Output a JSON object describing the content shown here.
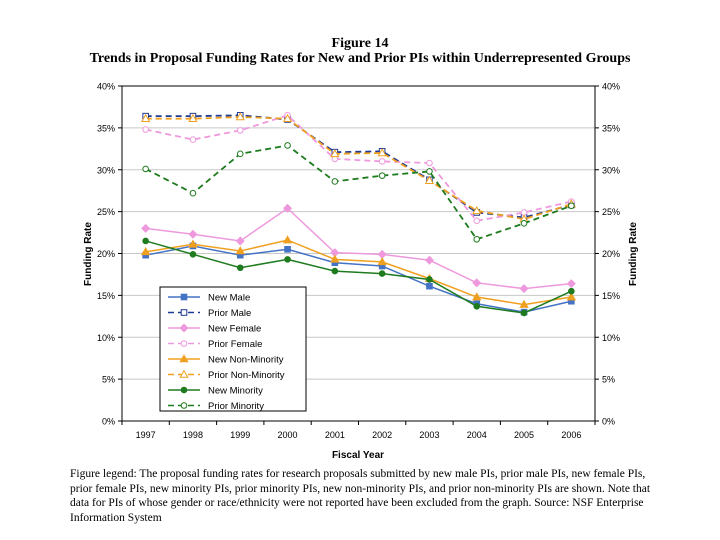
{
  "figure": {
    "label": "Figure 14",
    "title": "Trends in Proposal Funding Rates for New and Prior PIs within Underrepresented Groups",
    "caption": "Figure legend:  The proposal funding rates for research proposals submitted by new male PIs, prior male PIs, new female PIs, prior female PIs, new minority PIs, prior minority PIs, new non-minority PIs, and prior non-minority PIs are shown.  Note that data for PIs of whose gender or race/ethnicity were not reported have been excluded from the graph.  Source:  NSF Enterprise Information System"
  },
  "chart_data": {
    "type": "line",
    "title": "Trends in Proposal Funding Rates for New and Prior PIs within Underrepresented Groups",
    "xlabel": "Fiscal Year",
    "ylabel": "Funding Rate",
    "y2label": "Funding Rate",
    "ylim": [
      0,
      40
    ],
    "yticks": [
      "0%",
      "5%",
      "10%",
      "15%",
      "20%",
      "25%",
      "30%",
      "35%",
      "40%"
    ],
    "categories": [
      "1997",
      "1998",
      "1999",
      "2000",
      "2001",
      "2002",
      "2003",
      "2004",
      "2005",
      "2006"
    ],
    "legend_position": "lower-left",
    "series": [
      {
        "name": "New Male",
        "color": "#4472c4",
        "dash": false,
        "marker": "square",
        "filled": true,
        "values": [
          19.8,
          20.9,
          19.8,
          20.5,
          18.9,
          18.5,
          16.1,
          14.0,
          13.0,
          14.3
        ]
      },
      {
        "name": "Prior Male",
        "color": "#1f3a93",
        "dash": true,
        "marker": "square",
        "filled": false,
        "values": [
          36.4,
          36.4,
          36.5,
          36.0,
          32.1,
          32.2,
          28.8,
          24.9,
          24.3,
          25.8
        ]
      },
      {
        "name": "New Female",
        "color": "#ee99dd",
        "dash": false,
        "marker": "diamond",
        "filled": true,
        "values": [
          23.0,
          22.3,
          21.5,
          25.4,
          20.1,
          19.9,
          19.2,
          16.5,
          15.8,
          16.4
        ]
      },
      {
        "name": "Prior Female",
        "color": "#ee99dd",
        "dash": true,
        "marker": "circle",
        "filled": false,
        "values": [
          34.8,
          33.6,
          34.7,
          36.5,
          31.3,
          31.0,
          30.8,
          23.9,
          24.9,
          26.2
        ]
      },
      {
        "name": "New Non-Minority",
        "color": "#f0a020",
        "dash": false,
        "marker": "triangle",
        "filled": true,
        "values": [
          20.2,
          21.1,
          20.3,
          21.6,
          19.3,
          19.0,
          17.0,
          14.8,
          13.9,
          14.8
        ]
      },
      {
        "name": "Prior Non-Minority",
        "color": "#f0a020",
        "dash": true,
        "marker": "triangle",
        "filled": false,
        "values": [
          36.1,
          36.1,
          36.3,
          36.1,
          31.9,
          32.0,
          28.7,
          25.1,
          24.1,
          25.9
        ]
      },
      {
        "name": "New Minority",
        "color": "#1e7b1e",
        "dash": false,
        "marker": "circle",
        "filled": true,
        "values": [
          21.5,
          19.9,
          18.3,
          19.3,
          17.9,
          17.6,
          16.9,
          13.7,
          12.9,
          15.5
        ]
      },
      {
        "name": "Prior Minority",
        "color": "#1e7b1e",
        "dash": true,
        "marker": "circle",
        "filled": false,
        "values": [
          30.1,
          27.2,
          31.9,
          32.9,
          28.6,
          29.3,
          29.8,
          21.7,
          23.6,
          25.7
        ]
      }
    ]
  }
}
